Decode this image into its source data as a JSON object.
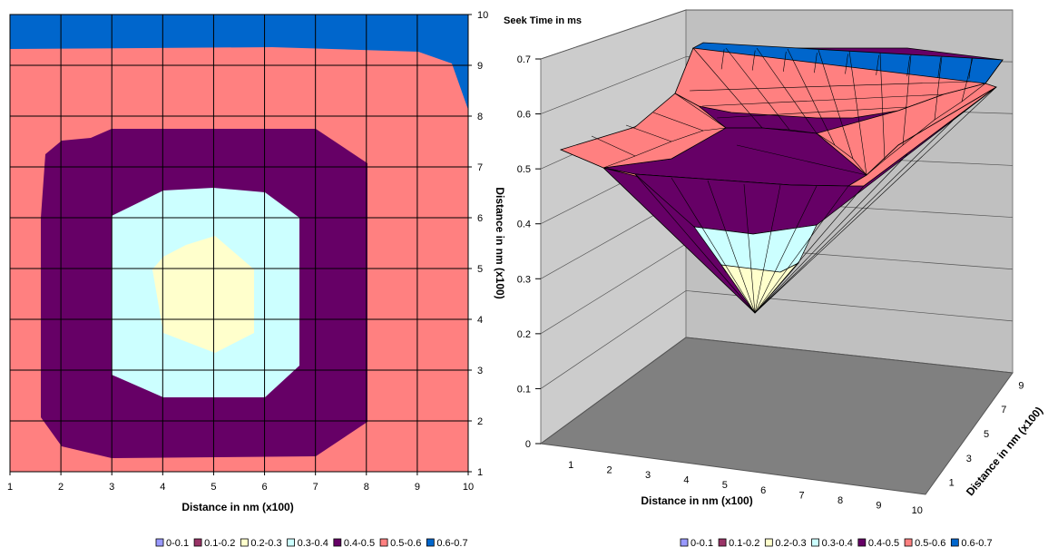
{
  "chart_data": [
    {
      "type": "contour",
      "xlabel": "Distance in nm (x100)",
      "ylabel": "Distance in nm (x100)",
      "x_ticks": [
        "1",
        "2",
        "3",
        "4",
        "5",
        "6",
        "7",
        "8",
        "9",
        "10"
      ],
      "y_ticks": [
        "1",
        "2",
        "3",
        "4",
        "5",
        "6",
        "7",
        "8",
        "9",
        "10"
      ],
      "xlim": [
        1,
        10
      ],
      "ylim": [
        1,
        10
      ],
      "grid": true,
      "legend_position": "bottom",
      "legend": [
        "0-0.1",
        "0.1-0.2",
        "0.2-0.3",
        "0.3-0.4",
        "0.4-0.5",
        "0.5-0.6",
        "0.6-0.7"
      ],
      "legend_colors": [
        "#9999ff",
        "#993366",
        "#ffffcc",
        "#ccffff",
        "#660066",
        "#ff8080",
        "#0066cc"
      ]
    },
    {
      "type": "surface",
      "zlabel": "Seek Time in ms",
      "xlabel": "Distance in nm (x100)",
      "ylabel": "Distance in nm (x100)",
      "z_ticks": [
        "0",
        "0.1",
        "0.2",
        "0.3",
        "0.4",
        "0.5",
        "0.6",
        "0.7"
      ],
      "zlim": [
        0,
        0.7
      ],
      "x_ticks": [
        "1",
        "2",
        "3",
        "4",
        "5",
        "6",
        "7",
        "8",
        "9",
        "10"
      ],
      "y_ticks": [
        "1",
        "3",
        "5",
        "7",
        "9"
      ],
      "surface_min": {
        "x": 5,
        "y": 5,
        "z": 0.24
      },
      "surface_max": 0.7,
      "legend_position": "bottom",
      "legend": [
        "0-0.1",
        "0.1-0.2",
        "0.2-0.3",
        "0.3-0.4",
        "0.4-0.5",
        "0.5-0.6",
        "0.6-0.7"
      ],
      "legend_colors": [
        "#9999ff",
        "#993366",
        "#ffffcc",
        "#ccffff",
        "#660066",
        "#ff8080",
        "#0066cc"
      ]
    }
  ]
}
